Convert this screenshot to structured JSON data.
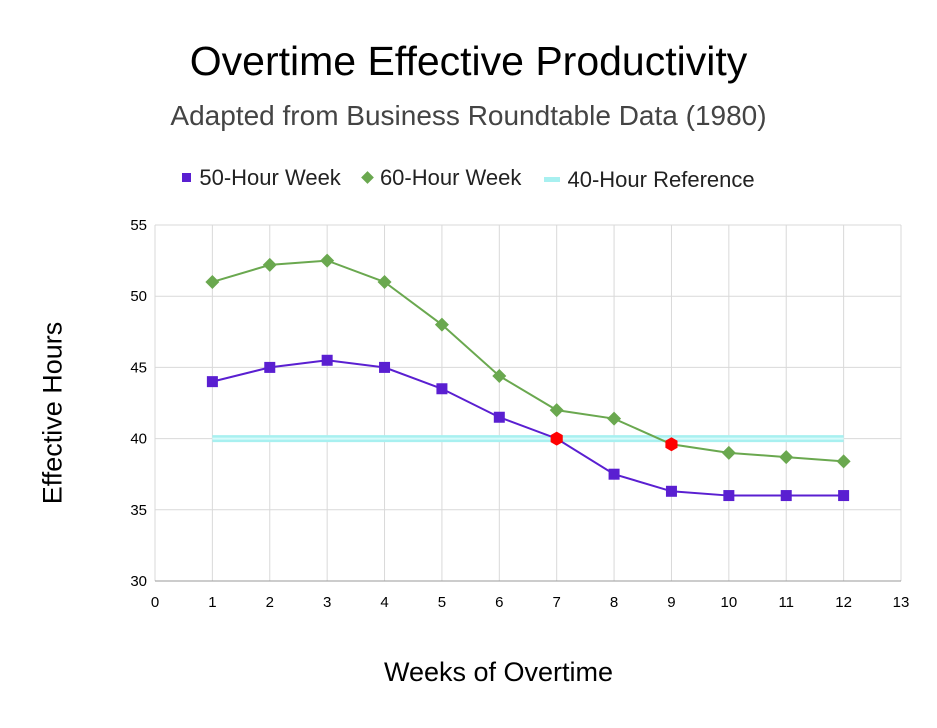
{
  "chart_data": {
    "type": "line",
    "title": "Overtime Effective Productivity",
    "subtitle": "Adapted from Business Roundtable Data (1980)",
    "xlabel": "Weeks of Overtime",
    "ylabel": "Effective Hours",
    "xlim": [
      0,
      13
    ],
    "ylim": [
      30,
      55
    ],
    "x_ticks": [
      0,
      1,
      2,
      3,
      4,
      5,
      6,
      7,
      8,
      9,
      10,
      11,
      12,
      13
    ],
    "y_ticks": [
      30,
      35,
      40,
      45,
      50,
      55
    ],
    "grid": true,
    "legend_position": "top",
    "series": [
      {
        "name": "50-Hour Week",
        "marker": "square",
        "color": "#5a1fd1",
        "x": [
          1,
          2,
          3,
          4,
          5,
          6,
          7,
          8,
          9,
          10,
          11,
          12
        ],
        "y": [
          44,
          45,
          45.5,
          45,
          43.5,
          41.5,
          40,
          37.5,
          36.3,
          36,
          36,
          36
        ]
      },
      {
        "name": "60-Hour Week",
        "marker": "diamond",
        "color": "#6aa84f",
        "x": [
          1,
          2,
          3,
          4,
          5,
          6,
          7,
          8,
          9,
          10,
          11,
          12
        ],
        "y": [
          51,
          52.2,
          52.5,
          51,
          48,
          44.4,
          42,
          41.4,
          39.6,
          39,
          38.7,
          38.4
        ]
      },
      {
        "name": "40-Hour Reference",
        "marker": "none",
        "color": "#a8f0f0",
        "x": [
          1,
          12
        ],
        "y": [
          40,
          40
        ]
      }
    ],
    "highlights": [
      {
        "series": "50-Hour Week",
        "x": 7,
        "y": 40,
        "color": "#ff0000"
      },
      {
        "series": "60-Hour Week",
        "x": 9,
        "y": 39.6,
        "color": "#ff0000"
      }
    ]
  }
}
